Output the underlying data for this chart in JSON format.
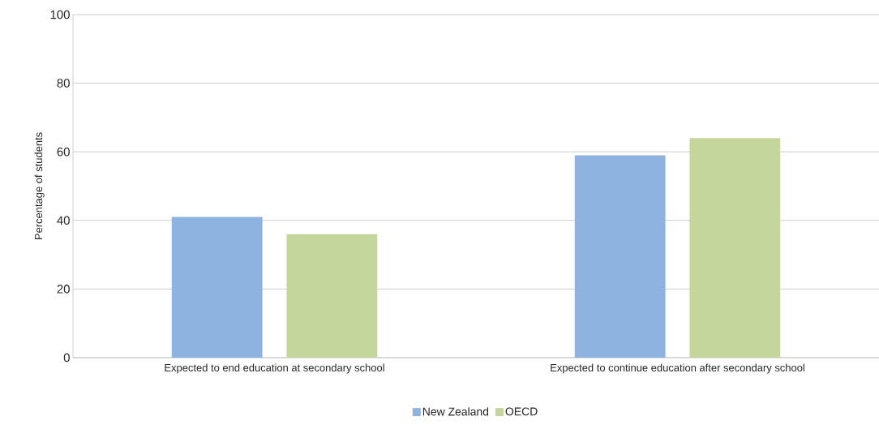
{
  "chart_data": {
    "type": "bar",
    "ylabel": "Percentage of students",
    "categories": [
      "Expected to end education at secondary school",
      "Expected to continue education after secondary school"
    ],
    "series": [
      {
        "name": "New Zealand",
        "color": "#8eb3e1",
        "values": [
          41,
          59
        ]
      },
      {
        "name": "OECD",
        "color": "#c4d69b",
        "values": [
          36,
          64
        ]
      }
    ],
    "ylim": [
      0,
      100
    ],
    "yticks": [
      0,
      20,
      40,
      60,
      80,
      100
    ],
    "grid": "y",
    "legend": "bottom"
  }
}
